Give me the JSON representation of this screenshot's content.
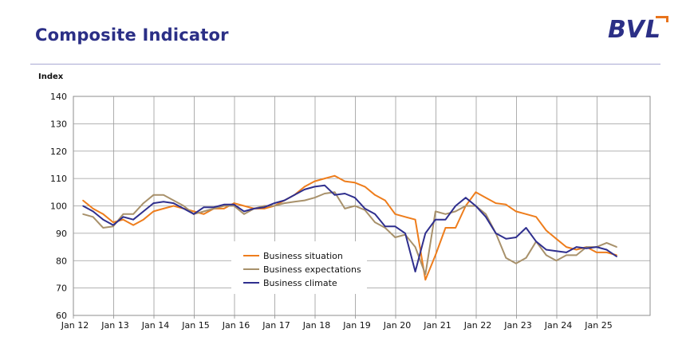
{
  "header": {
    "title": "Composite Indicator",
    "logo_text": "BVL",
    "logo_accent_color": "#e8731c",
    "brand_color": "#2b2f86"
  },
  "chart_data": {
    "type": "line",
    "title": "",
    "ylabel": "Index",
    "xlabel": "",
    "ylim": [
      60,
      140
    ],
    "yticks": [
      60,
      70,
      80,
      90,
      100,
      110,
      120,
      130,
      140
    ],
    "xticks": [
      "Jan 12",
      "Jan 13",
      "Jan 14",
      "Jan 15",
      "Jan 16",
      "Jan 17",
      "Jan 18",
      "Jan 19",
      "Jan 20",
      "Jan 21",
      "Jan 22",
      "Jan 23",
      "Jan 24",
      "Jan 25"
    ],
    "grid": true,
    "legend_position": "bottom-center",
    "x": [
      "2012-01",
      "2012-04",
      "2012-07",
      "2012-10",
      "2013-01",
      "2013-04",
      "2013-07",
      "2013-10",
      "2014-01",
      "2014-04",
      "2014-07",
      "2014-10",
      "2015-01",
      "2015-04",
      "2015-07",
      "2015-10",
      "2016-01",
      "2016-04",
      "2016-07",
      "2016-10",
      "2017-01",
      "2017-04",
      "2017-07",
      "2017-10",
      "2018-01",
      "2018-04",
      "2018-07",
      "2018-10",
      "2019-01",
      "2019-04",
      "2019-07",
      "2019-10",
      "2020-01",
      "2020-04",
      "2020-07",
      "2020-10",
      "2021-01",
      "2021-04",
      "2021-07",
      "2021-10",
      "2022-01",
      "2022-04",
      "2022-07",
      "2022-10",
      "2023-01",
      "2023-04",
      "2023-07",
      "2023-10",
      "2024-01",
      "2024-04",
      "2024-07",
      "2024-10",
      "2025-01",
      "2025-04"
    ],
    "series": [
      {
        "name": "Business situation",
        "color": "#ee7d1c",
        "values": [
          102,
          99,
          97,
          94,
          95,
          93,
          95,
          98,
          99,
          100,
          99,
          98,
          97,
          99,
          99,
          101,
          100,
          99,
          99,
          100,
          102,
          104,
          107,
          109,
          110,
          111,
          109,
          108.5,
          107,
          104,
          102,
          97,
          96,
          95,
          73,
          82,
          92,
          92,
          100,
          105,
          103,
          101,
          100.5,
          98,
          97,
          96,
          91,
          88,
          85,
          84,
          85,
          83,
          83,
          82
        ]
      },
      {
        "name": "Business expectations",
        "color": "#a8916b",
        "values": [
          97,
          96,
          92,
          92.5,
          97,
          97,
          101,
          104,
          104,
          102,
          100,
          97,
          98,
          99,
          100,
          100,
          97,
          99,
          100,
          100,
          101,
          101.5,
          102,
          103,
          104.5,
          105,
          99,
          100,
          98.5,
          94,
          92,
          88.5,
          89.5,
          85,
          75,
          98,
          97,
          98,
          100,
          100,
          97,
          90,
          81,
          79,
          81,
          87,
          82,
          80,
          82,
          82,
          85,
          85,
          86.5,
          85
        ]
      },
      {
        "name": "Business climate",
        "color": "#2f2f8e",
        "values": [
          100,
          98,
          95,
          93,
          96,
          95,
          98,
          101,
          101.5,
          101,
          99,
          97,
          99.5,
          99.5,
          100.5,
          100.5,
          98,
          99,
          99.5,
          101,
          102,
          104,
          106,
          107,
          107.5,
          104,
          104.5,
          103,
          99,
          97,
          92.5,
          92.5,
          90,
          76,
          90,
          95,
          95,
          100,
          103,
          100,
          96,
          90,
          88,
          88.5,
          92,
          87,
          84,
          83.5,
          83,
          85,
          84.5,
          85,
          84,
          81.5
        ]
      }
    ]
  }
}
